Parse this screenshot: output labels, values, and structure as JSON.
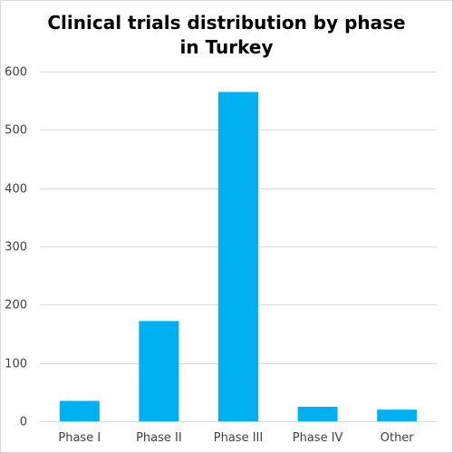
{
  "chart_data": {
    "type": "bar",
    "title_lines": [
      "Clinical trials distribution by phase",
      "in Turkey"
    ],
    "categories": [
      "Phase I",
      "Phase II",
      "Phase III",
      "Phase IV",
      "Other"
    ],
    "values": [
      35,
      172,
      565,
      25,
      20
    ],
    "ylim": [
      0,
      600
    ],
    "yticks": [
      0,
      100,
      200,
      300,
      400,
      500,
      600
    ],
    "grid": true,
    "legend": "none",
    "bar_color": "#00b0f0",
    "gridline_color": "#d9d9d9",
    "text_color": "#404040"
  }
}
